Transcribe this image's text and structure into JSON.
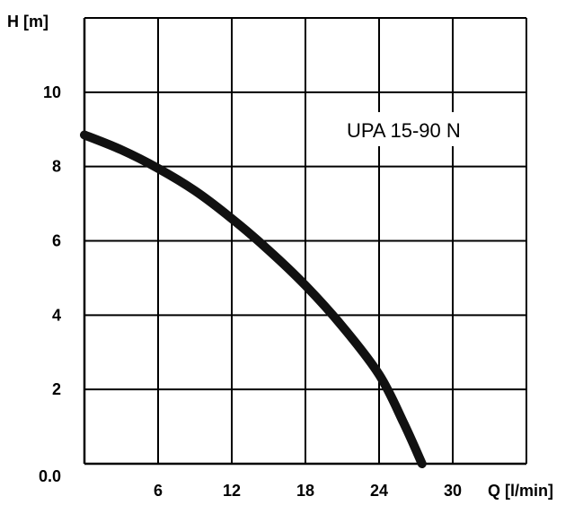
{
  "chart_data": {
    "type": "line",
    "title": "",
    "annotation": "UPA 15-90 N",
    "xlabel": "Q [l/min]",
    "ylabel": "H [m]",
    "xlim": [
      0,
      36
    ],
    "ylim": [
      0,
      12
    ],
    "x_ticks": [
      6,
      12,
      18,
      24,
      30
    ],
    "x_tick_labels": [
      "6",
      "12",
      "18",
      "24",
      "30"
    ],
    "y_ticks": [
      0,
      2,
      4,
      6,
      8,
      10
    ],
    "y_tick_labels": [
      "0.0",
      "2",
      "4",
      "6",
      "8",
      "10"
    ],
    "grid": true,
    "series": [
      {
        "color": "#111111",
        "x": [
          0,
          3,
          6,
          9,
          12,
          15,
          18,
          21,
          24,
          26,
          27.5
        ],
        "y": [
          8.85,
          8.45,
          7.95,
          7.35,
          6.6,
          5.75,
          4.8,
          3.7,
          2.4,
          1.1,
          0.0
        ]
      }
    ]
  }
}
